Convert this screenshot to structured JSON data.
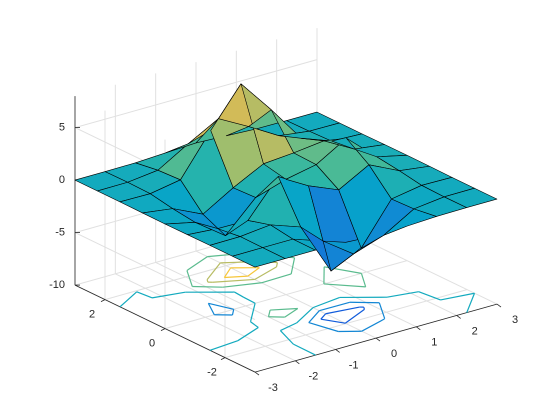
{
  "chart_data": {
    "type": "surface",
    "x": [
      -3,
      -2.25,
      -1.5,
      -0.75,
      0,
      0.75,
      1.5,
      2.25,
      3
    ],
    "y": [
      -3,
      -2.25,
      -1.5,
      -0.75,
      0,
      0.75,
      1.5,
      2.25,
      3
    ],
    "z": [
      [
        0,
        0,
        0,
        -0.07,
        -0.24,
        -0.17,
        -0.03,
        0,
        0
      ],
      [
        0,
        0.01,
        0.01,
        -0.99,
        -3.02,
        -2.05,
        -0.35,
        -0.01,
        0
      ],
      [
        0,
        0.03,
        0.33,
        -0.68,
        -5.68,
        -4.32,
        -0.44,
        0.05,
        0
      ],
      [
        -0.02,
        -0.25,
        -0.28,
        3.09,
        1.4,
        0.2,
        1.78,
        0.41,
        0.02
      ],
      [
        -0.04,
        -0.69,
        -2.77,
        0.06,
        0.98,
        1.57,
        3.27,
        0.7,
        0.03
      ],
      [
        -0.02,
        -0.42,
        -1.76,
        -0.05,
        1.42,
        1.65,
        1.99,
        0.4,
        0.02
      ],
      [
        0,
        -0.03,
        0.48,
        4.37,
        8,
        4.72,
        1.19,
        0.12,
        0
      ],
      [
        0,
        0.02,
        0.36,
        2.07,
        3.65,
        2.09,
        0.41,
        0.03,
        0
      ],
      [
        0,
        0,
        0.03,
        0.17,
        0.3,
        0.17,
        0.03,
        0,
        0
      ]
    ],
    "xlim": [
      -3,
      3
    ],
    "ylim": [
      -3,
      3
    ],
    "zlim": [
      -10,
      8
    ],
    "xticks": [
      -3,
      -2,
      -1,
      0,
      1,
      2,
      3
    ],
    "yticks": [
      -2,
      0,
      2
    ],
    "zticks": [
      -10,
      -5,
      0,
      5
    ],
    "contour_levels": [
      -6,
      -4,
      -2,
      0,
      2,
      4,
      6
    ],
    "grid": true,
    "colormap": [
      "#352a87",
      "#0f5cdd",
      "#1481d6",
      "#06a4ca",
      "#2eb7a4",
      "#87bf77",
      "#d1bb59",
      "#fec832",
      "#f9fb0e"
    ]
  }
}
